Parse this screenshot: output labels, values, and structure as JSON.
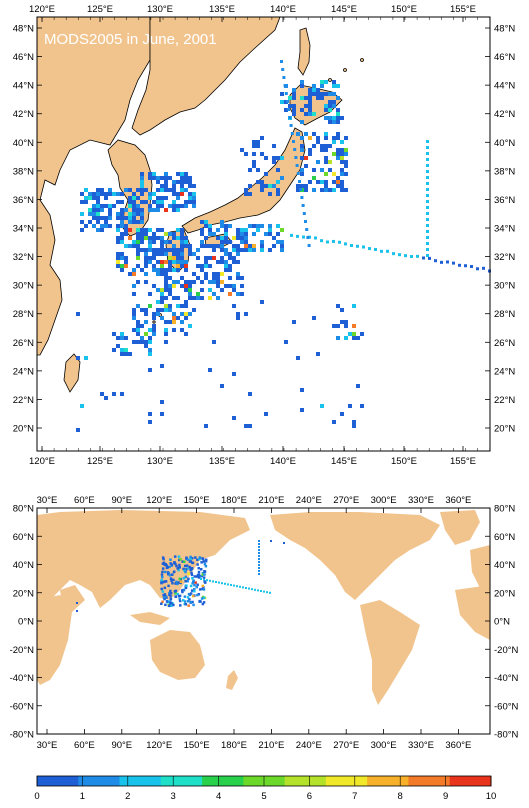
{
  "top_map": {
    "title": "MODS2005 in June, 2001",
    "lon_labels": [
      "120°E",
      "125°E",
      "130°E",
      "135°E",
      "140°E",
      "145°E",
      "150°E",
      "155°E"
    ],
    "lat_labels": [
      "20°N",
      "22°N",
      "24°N",
      "26°N",
      "28°N",
      "30°N",
      "32°N",
      "34°N",
      "36°N",
      "38°N",
      "40°N",
      "42°N",
      "44°N",
      "46°N",
      "48°N"
    ]
  },
  "bottom_map": {
    "lon_labels": [
      "30°E",
      "60°E",
      "90°E",
      "120°E",
      "150°E",
      "180°E",
      "210°E",
      "240°E",
      "270°E",
      "300°E",
      "330°E",
      "360°E"
    ],
    "lat_labels": [
      "80°N",
      "60°N",
      "40°N",
      "20°N",
      "0°N",
      "-20°N",
      "-40°N",
      "-60°N",
      "-80°N"
    ]
  },
  "colorbar": {
    "labels": [
      "0",
      "1",
      "2",
      "3",
      "4",
      "5",
      "6",
      "7",
      "8",
      "9",
      "10"
    ],
    "colors": [
      "#1f5fd6",
      "#1e8be6",
      "#19c2ea",
      "#1ee0c8",
      "#28d04c",
      "#6cd82a",
      "#b4e22a",
      "#f2e82a",
      "#f6b02a",
      "#f27a28",
      "#e8341c"
    ]
  },
  "colors": {
    "land": "#f2c48d",
    "ocean": "#ffffff",
    "outline": "#000000"
  }
}
